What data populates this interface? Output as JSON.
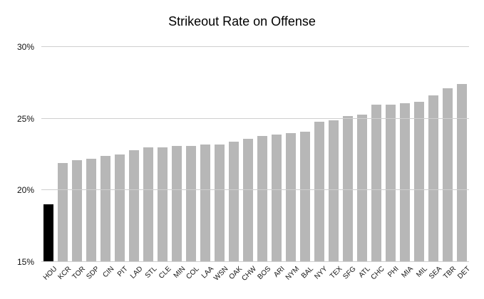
{
  "chart_data": {
    "type": "bar",
    "title": "Strikeout Rate on Offense",
    "xlabel": "",
    "ylabel": "",
    "unit": "%",
    "categories": [
      "HOU",
      "KCR",
      "TOR",
      "SDP",
      "CIN",
      "PIT",
      "LAD",
      "STL",
      "CLE",
      "MIN",
      "COL",
      "LAA",
      "WSN",
      "OAK",
      "CHW",
      "BOS",
      "ARI",
      "NYM",
      "BAL",
      "NYY",
      "TEX",
      "SFG",
      "ATL",
      "CHC",
      "PHI",
      "MIA",
      "MIL",
      "SEA",
      "TBR",
      "DET"
    ],
    "values": [
      19.0,
      21.9,
      22.1,
      22.2,
      22.4,
      22.5,
      22.8,
      23.0,
      23.0,
      23.1,
      23.1,
      23.2,
      23.2,
      23.4,
      23.6,
      23.8,
      23.9,
      24.0,
      24.1,
      24.8,
      24.9,
      25.2,
      25.3,
      26.0,
      26.0,
      26.1,
      26.2,
      26.6,
      27.1,
      27.4
    ],
    "ylim": [
      15,
      30
    ],
    "yticks": [
      {
        "value": 15,
        "label": "15%"
      },
      {
        "value": 20,
        "label": "20%"
      },
      {
        "value": 25,
        "label": "25%"
      },
      {
        "value": 30,
        "label": "30%"
      }
    ],
    "grid": true,
    "legend": "none",
    "colors": {
      "bar": "#b7b7b7",
      "highlight": "#000000",
      "gridline": "#cfcfcf",
      "title": "#000000",
      "axis_text": "#111111",
      "background": "#ffffff"
    },
    "highlight_category": "HOU"
  }
}
